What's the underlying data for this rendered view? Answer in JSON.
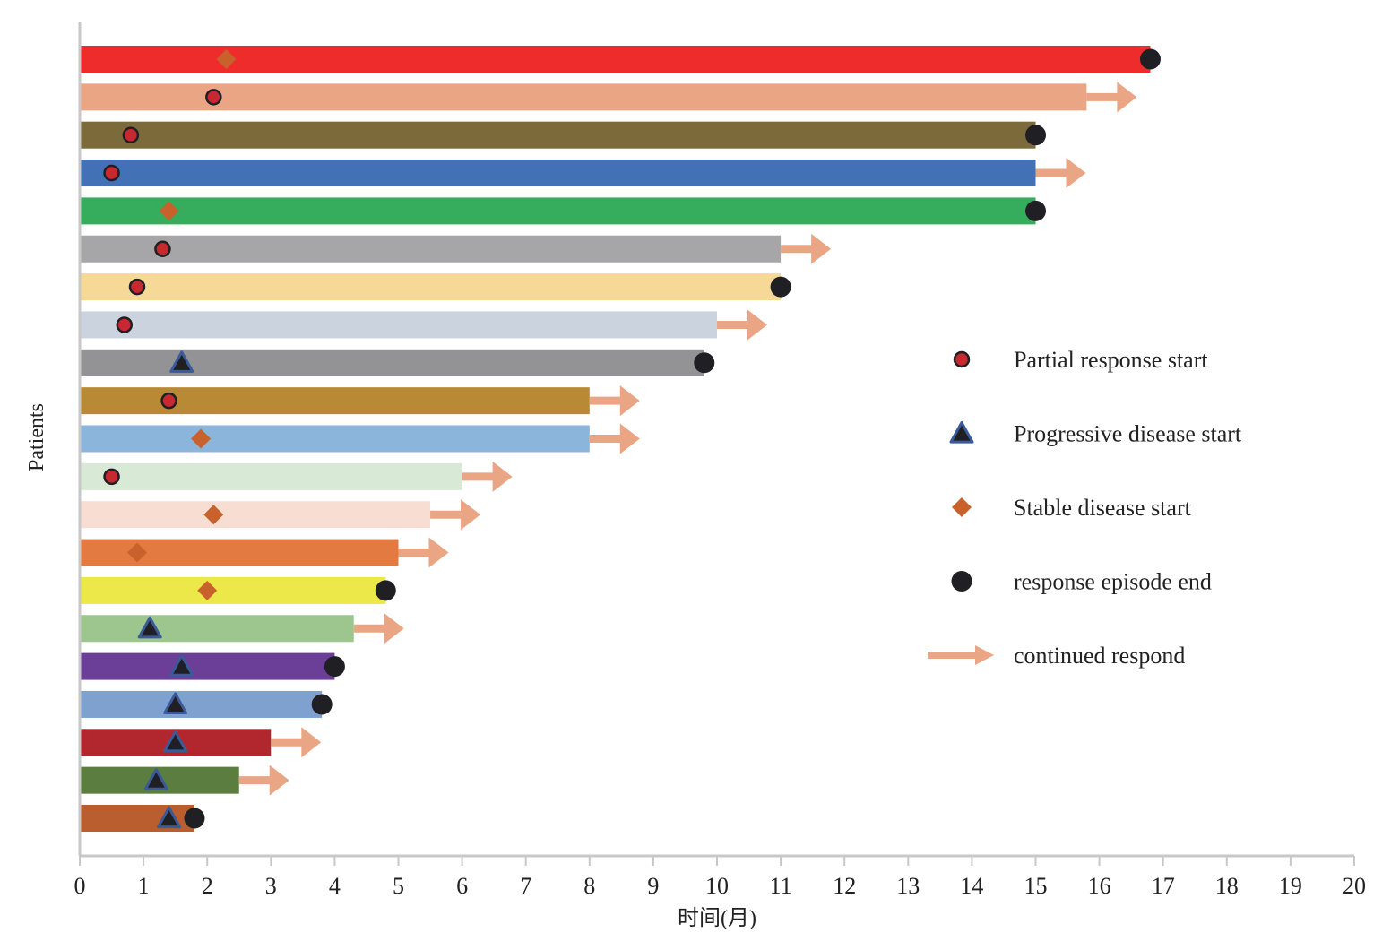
{
  "chart_data": {
    "type": "bar",
    "subtype": "swimmer",
    "title": "",
    "xlabel": "时间(月)",
    "ylabel": "Patients",
    "xlim": [
      0,
      20
    ],
    "xticks": [
      0,
      1,
      2,
      3,
      4,
      5,
      6,
      7,
      8,
      9,
      10,
      11,
      12,
      13,
      14,
      15,
      16,
      17,
      18,
      19,
      20
    ],
    "grid": false,
    "legend_position": "right-middle",
    "marker_colors": {
      "partial_response": "#c8282f",
      "progressive_disease": "#1f1f24",
      "progressive_disease_edge": "#3a5a9a",
      "stable_disease": "#c8612c",
      "episode_end": "#1f1f24",
      "arrow": "#eaa684"
    },
    "legend": [
      {
        "key": "partial_response",
        "label": "Partial response start"
      },
      {
        "key": "progressive_disease",
        "label": "Progressive disease start"
      },
      {
        "key": "stable_disease",
        "label": "Stable disease start"
      },
      {
        "key": "episode_end",
        "label": "response episode end"
      },
      {
        "key": "continued",
        "label": "continued respond"
      }
    ],
    "patients": [
      {
        "duration": 16.8,
        "color": "#ee2c2c",
        "marker": "stable_disease",
        "marker_at": 2.3,
        "end": "episode_end"
      },
      {
        "duration": 15.8,
        "color": "#eaa684",
        "marker": "partial_response",
        "marker_at": 2.1,
        "end": "continued"
      },
      {
        "duration": 15.0,
        "color": "#7d6a3b",
        "marker": "partial_response",
        "marker_at": 0.8,
        "end": "episode_end"
      },
      {
        "duration": 15.0,
        "color": "#4271b6",
        "marker": "partial_response",
        "marker_at": 0.5,
        "end": "continued"
      },
      {
        "duration": 15.0,
        "color": "#35ad5c",
        "marker": "stable_disease",
        "marker_at": 1.4,
        "end": "episode_end"
      },
      {
        "duration": 11.0,
        "color": "#a6a5a7",
        "marker": "partial_response",
        "marker_at": 1.3,
        "end": "continued"
      },
      {
        "duration": 11.0,
        "color": "#f6d996",
        "marker": "partial_response",
        "marker_at": 0.9,
        "end": "episode_end"
      },
      {
        "duration": 10.0,
        "color": "#cbd4de",
        "marker": "partial_response",
        "marker_at": 0.7,
        "end": "continued"
      },
      {
        "duration": 9.8,
        "color": "#939395",
        "marker": "progressive_disease",
        "marker_at": 1.6,
        "end": "episode_end"
      },
      {
        "duration": 8.0,
        "color": "#b88a35",
        "marker": "partial_response",
        "marker_at": 1.4,
        "end": "continued"
      },
      {
        "duration": 8.0,
        "color": "#8bb5da",
        "marker": "stable_disease",
        "marker_at": 1.9,
        "end": "continued"
      },
      {
        "duration": 6.0,
        "color": "#d8ead6",
        "marker": "partial_response",
        "marker_at": 0.5,
        "end": "continued"
      },
      {
        "duration": 5.5,
        "color": "#f8ddd2",
        "marker": "stable_disease",
        "marker_at": 2.1,
        "end": "continued"
      },
      {
        "duration": 5.0,
        "color": "#e27a42",
        "marker": "stable_disease",
        "marker_at": 0.9,
        "end": "continued"
      },
      {
        "duration": 4.8,
        "color": "#ece84a",
        "marker": "stable_disease",
        "marker_at": 2.0,
        "end": "episode_end"
      },
      {
        "duration": 4.3,
        "color": "#9dc68f",
        "marker": "progressive_disease",
        "marker_at": 1.1,
        "end": "continued"
      },
      {
        "duration": 4.0,
        "color": "#6b3f97",
        "marker": "progressive_disease",
        "marker_at": 1.6,
        "end": "episode_end"
      },
      {
        "duration": 3.8,
        "color": "#7fa1d0",
        "marker": "progressive_disease",
        "marker_at": 1.5,
        "end": "episode_end"
      },
      {
        "duration": 3.0,
        "color": "#b2262e",
        "marker": "progressive_disease",
        "marker_at": 1.5,
        "end": "continued"
      },
      {
        "duration": 2.5,
        "color": "#5b7e40",
        "marker": "progressive_disease",
        "marker_at": 1.2,
        "end": "continued"
      },
      {
        "duration": 1.8,
        "color": "#bb5e2f",
        "marker": "progressive_disease",
        "marker_at": 1.4,
        "end": "episode_end"
      }
    ]
  }
}
